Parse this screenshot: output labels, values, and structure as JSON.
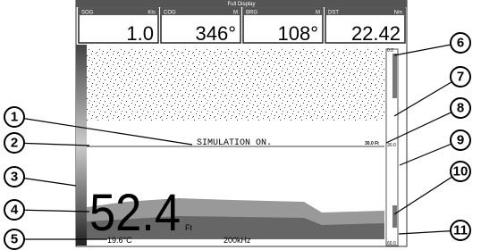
{
  "header": {
    "title": "Full Display"
  },
  "panels": [
    {
      "label": "SOG",
      "unit": "Kts",
      "value": "1.0"
    },
    {
      "label": "COG",
      "unit": "M",
      "value": "346°"
    },
    {
      "label": "BRG",
      "unit": "M",
      "value": "108°"
    },
    {
      "label": "DST",
      "unit": "Nm",
      "value": "22.42"
    }
  ],
  "sonar": {
    "status": "SIMULATION ON.",
    "marker_depth": "30.0 Ft",
    "depth": "52.4",
    "depth_unit": "Ft",
    "temperature": "19.6°C",
    "frequency": "200kHz",
    "scale": [
      "0.0",
      "30.0",
      "60.0"
    ]
  },
  "callouts": [
    "1",
    "2",
    "3",
    "4",
    "5",
    "6",
    "7",
    "8",
    "9",
    "10",
    "11"
  ]
}
